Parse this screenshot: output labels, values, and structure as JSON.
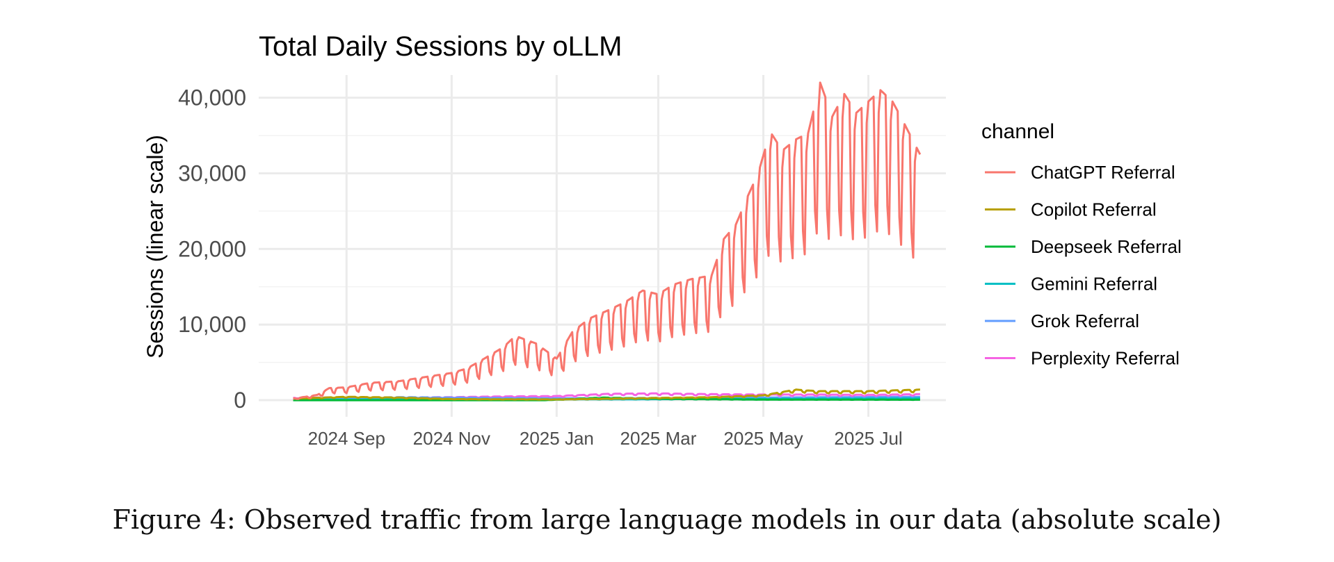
{
  "caption": "Figure 4: Observed traffic from large language models in our data (absolute scale)",
  "chart_data": {
    "type": "line",
    "title": "Total Daily Sessions by oLLM",
    "xlabel": "",
    "ylabel": "Sessions (linear scale)",
    "x_start": "2024-08-01",
    "x_end": "2025-07-31",
    "xlim": [
      "2024-07-12",
      "2025-08-15"
    ],
    "ylim": [
      -2200,
      43000
    ],
    "x_ticks": [
      "2024 Sep",
      "2024 Nov",
      "2025 Jan",
      "2025 Mar",
      "2025 May",
      "2025 Jul"
    ],
    "x_tick_dates": [
      "2024-09-01",
      "2024-11-01",
      "2025-01-01",
      "2025-03-01",
      "2025-05-01",
      "2025-07-01"
    ],
    "y_ticks": [
      0,
      10000,
      20000,
      30000,
      40000
    ],
    "y_tick_labels": [
      "0",
      "10,000",
      "20,000",
      "30,000",
      "40,000"
    ],
    "grid": true,
    "legend_title": "channel",
    "legend_position": "right",
    "series": [
      {
        "name": "ChatGPT Referral",
        "color": "#F8766D",
        "points": [
          [
            "2024-08-01",
            200
          ],
          [
            "2024-08-15",
            700
          ],
          [
            "2024-08-22",
            1600
          ],
          [
            "2024-09-01",
            1700
          ],
          [
            "2024-09-15",
            2300
          ],
          [
            "2024-10-01",
            2500
          ],
          [
            "2024-10-15",
            3000
          ],
          [
            "2024-11-01",
            3600
          ],
          [
            "2024-11-10",
            4200
          ],
          [
            "2024-11-20",
            5500
          ],
          [
            "2024-12-01",
            7000
          ],
          [
            "2024-12-08",
            8500
          ],
          [
            "2024-12-20",
            7500
          ],
          [
            "2025-01-01",
            5500
          ],
          [
            "2025-01-10",
            9000
          ],
          [
            "2025-01-20",
            10800
          ],
          [
            "2025-02-01",
            12000
          ],
          [
            "2025-02-10",
            13000
          ],
          [
            "2025-02-20",
            14500
          ],
          [
            "2025-03-01",
            14000
          ],
          [
            "2025-03-10",
            15300
          ],
          [
            "2025-03-20",
            16000
          ],
          [
            "2025-04-01",
            16500
          ],
          [
            "2025-04-08",
            21300
          ],
          [
            "2025-04-15",
            23200
          ],
          [
            "2025-04-22",
            27000
          ],
          [
            "2025-04-28",
            30000
          ],
          [
            "2025-05-05",
            35500
          ],
          [
            "2025-05-12",
            33000
          ],
          [
            "2025-05-20",
            34500
          ],
          [
            "2025-05-27",
            35300
          ],
          [
            "2025-06-03",
            42000
          ],
          [
            "2025-06-10",
            37500
          ],
          [
            "2025-06-17",
            40500
          ],
          [
            "2025-06-24",
            38000
          ],
          [
            "2025-07-01",
            39500
          ],
          [
            "2025-07-08",
            41000
          ],
          [
            "2025-07-15",
            39500
          ],
          [
            "2025-07-22",
            36500
          ],
          [
            "2025-07-31",
            32500
          ]
        ]
      },
      {
        "name": "Copilot Referral",
        "color": "#B79F00",
        "points": [
          [
            "2024-08-01",
            200
          ],
          [
            "2024-09-01",
            450
          ],
          [
            "2024-10-01",
            350
          ],
          [
            "2024-11-01",
            150
          ],
          [
            "2024-12-01",
            120
          ],
          [
            "2025-01-01",
            100
          ],
          [
            "2025-02-01",
            200
          ],
          [
            "2025-03-01",
            300
          ],
          [
            "2025-04-01",
            400
          ],
          [
            "2025-05-01",
            650
          ],
          [
            "2025-05-20",
            1400
          ],
          [
            "2025-06-01",
            1200
          ],
          [
            "2025-07-01",
            1200
          ],
          [
            "2025-07-31",
            1400
          ]
        ]
      },
      {
        "name": "Deepseek Referral",
        "color": "#00BA38",
        "points": [
          [
            "2024-08-01",
            0
          ],
          [
            "2024-12-25",
            0
          ],
          [
            "2025-01-10",
            150
          ],
          [
            "2025-01-28",
            350
          ],
          [
            "2025-02-15",
            250
          ],
          [
            "2025-03-15",
            150
          ],
          [
            "2025-05-01",
            80
          ],
          [
            "2025-07-31",
            60
          ]
        ]
      },
      {
        "name": "Gemini Referral",
        "color": "#00BFC4",
        "points": [
          [
            "2024-08-01",
            50
          ],
          [
            "2024-10-01",
            100
          ],
          [
            "2024-12-01",
            100
          ],
          [
            "2025-02-01",
            120
          ],
          [
            "2025-04-01",
            150
          ],
          [
            "2025-06-01",
            200
          ],
          [
            "2025-07-31",
            250
          ]
        ]
      },
      {
        "name": "Grok Referral",
        "color": "#619CFF",
        "points": [
          [
            "2024-08-01",
            150
          ],
          [
            "2024-10-01",
            400
          ],
          [
            "2024-11-01",
            350
          ],
          [
            "2025-01-01",
            250
          ],
          [
            "2025-03-01",
            300
          ],
          [
            "2025-05-01",
            350
          ],
          [
            "2025-07-31",
            450
          ]
        ]
      },
      {
        "name": "Perplexity Referral",
        "color": "#F564E3",
        "points": [
          [
            "2024-08-01",
            300
          ],
          [
            "2024-09-01",
            400
          ],
          [
            "2024-10-01",
            350
          ],
          [
            "2024-11-01",
            400
          ],
          [
            "2024-12-01",
            500
          ],
          [
            "2025-01-01",
            550
          ],
          [
            "2025-02-01",
            850
          ],
          [
            "2025-03-01",
            900
          ],
          [
            "2025-04-01",
            800
          ],
          [
            "2025-05-01",
            750
          ],
          [
            "2025-06-01",
            750
          ],
          [
            "2025-07-01",
            700
          ],
          [
            "2025-07-31",
            800
          ]
        ]
      }
    ]
  }
}
